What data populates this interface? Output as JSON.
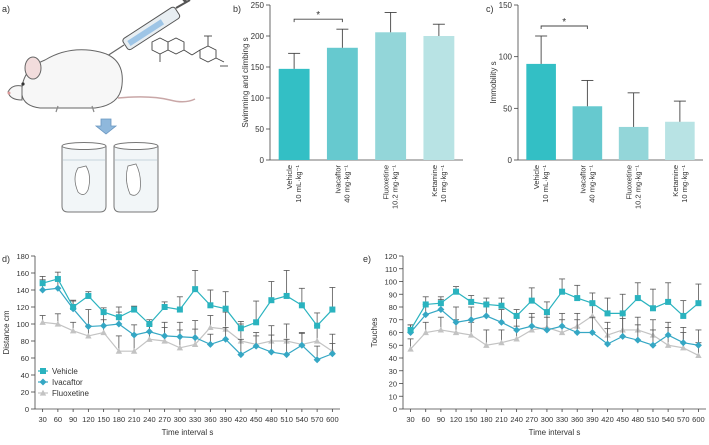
{
  "panels": {
    "a": "a)",
    "b": "b)",
    "c": "c)",
    "d": "d)",
    "e": "e)"
  },
  "colors": {
    "vehicle": "#33bfc5",
    "ivacaftor": "#66c9cf",
    "fluoxetine": "#93d6d9",
    "ketamine": "#b8e3e4",
    "line_vehicle": "#2ab3bf",
    "line_ivacaftor": "#35a7c4",
    "line_fluoxetine": "#c3c3c3"
  },
  "chart_data": [
    {
      "id": "b",
      "type": "bar",
      "ylabel": "Swimming and climbing s",
      "ylim": [
        0,
        250
      ],
      "yticks": [
        0,
        50,
        100,
        150,
        200,
        250
      ],
      "categories": [
        [
          "Vehicle",
          "10 mL·kg⁻¹"
        ],
        [
          "Ivacaftor",
          "40 mg·kg⁻¹"
        ],
        [
          "Fluoxetine",
          "10.2 mg·kg⁻¹"
        ],
        [
          "Ketamine",
          "10 mg·kg⁻¹"
        ]
      ],
      "values": [
        147,
        181,
        206,
        200
      ],
      "errors": [
        25,
        30,
        32,
        19
      ],
      "significance": {
        "from": 0,
        "to": 1,
        "label": "*"
      }
    },
    {
      "id": "c",
      "type": "bar",
      "ylabel": "Immobility s",
      "ylim": [
        0,
        150
      ],
      "yticks": [
        0,
        50,
        100,
        150
      ],
      "categories": [
        [
          "Vehicle",
          "10 mL·kg⁻¹"
        ],
        [
          "Ivacaftor",
          "40 mg·kg⁻¹"
        ],
        [
          "Fluoxetine",
          "10.2 mg·kg⁻¹"
        ],
        [
          "Ketamine",
          "10 mg·kg⁻¹"
        ]
      ],
      "values": [
        93,
        52,
        32,
        37
      ],
      "errors": [
        27,
        25,
        33,
        20
      ],
      "significance": {
        "from": 0,
        "to": 1,
        "label": "*"
      }
    },
    {
      "id": "d",
      "type": "line",
      "xlabel": "Time interval s",
      "ylabel": "Distance cm",
      "ylim": [
        0,
        180
      ],
      "yticks": [
        0,
        20,
        40,
        60,
        80,
        100,
        120,
        140,
        160,
        180
      ],
      "x": [
        30,
        60,
        90,
        120,
        150,
        180,
        210,
        240,
        270,
        300,
        330,
        360,
        390,
        420,
        450,
        480,
        510,
        540,
        570,
        600
      ],
      "legend": "bottom-left",
      "series": [
        {
          "name": "Vehicle",
          "marker": "square",
          "values": [
            148,
            153,
            120,
            133,
            114,
            108,
            117,
            100,
            120,
            117,
            141,
            122,
            118,
            95,
            102,
            128,
            133,
            122,
            98,
            117
          ],
          "errors": [
            8,
            8,
            7,
            5,
            5,
            6,
            4,
            5,
            6,
            15,
            22,
            18,
            20,
            8,
            25,
            22,
            30,
            20,
            15,
            26
          ]
        },
        {
          "name": "Ivacaftor",
          "marker": "diamond",
          "values": [
            140,
            142,
            118,
            97,
            98,
            100,
            87,
            91,
            86,
            85,
            84,
            76,
            82,
            64,
            74,
            67,
            64,
            75,
            58,
            65
          ],
          "errors": [
            12,
            10,
            10,
            20,
            18,
            20,
            12,
            8,
            10,
            8,
            10,
            12,
            14,
            18,
            12,
            20,
            18,
            14,
            16,
            12
          ]
        },
        {
          "name": "Fluoxetine",
          "marker": "triangle",
          "values": [
            102,
            100,
            92,
            86,
            90,
            68,
            68,
            82,
            80,
            72,
            76,
            96,
            94,
            80,
            76,
            80,
            80,
            76,
            80,
            68
          ],
          "errors": [
            8,
            12,
            10,
            12,
            15,
            18,
            20,
            18,
            22,
            30,
            28,
            14,
            20,
            20,
            14,
            18,
            20,
            14,
            18,
            20
          ]
        }
      ]
    },
    {
      "id": "e",
      "type": "line",
      "xlabel": "Time interval s",
      "ylabel": "Touches",
      "ylim": [
        0,
        120
      ],
      "yticks": [
        0,
        10,
        20,
        30,
        40,
        50,
        60,
        70,
        80,
        90,
        100,
        110,
        120
      ],
      "x": [
        30,
        60,
        90,
        120,
        150,
        180,
        210,
        240,
        270,
        300,
        330,
        360,
        390,
        420,
        450,
        480,
        510,
        540,
        570,
        600
      ],
      "series": [
        {
          "name": "Vehicle",
          "marker": "square",
          "values": [
            62,
            82,
            83,
            92,
            84,
            82,
            81,
            73,
            85,
            76,
            92,
            87,
            83,
            75,
            75,
            87,
            79,
            84,
            73,
            83
          ],
          "errors": [
            4,
            6,
            5,
            4,
            5,
            5,
            6,
            5,
            10,
            8,
            10,
            10,
            8,
            12,
            15,
            12,
            15,
            15,
            12,
            15
          ]
        },
        {
          "name": "Ivacaftor",
          "marker": "diamond",
          "values": [
            60,
            74,
            78,
            68,
            70,
            73,
            68,
            62,
            65,
            62,
            65,
            60,
            60,
            51,
            57,
            54,
            50,
            58,
            52,
            50
          ],
          "errors": [
            6,
            8,
            8,
            12,
            10,
            10,
            10,
            10,
            10,
            10,
            10,
            10,
            12,
            12,
            14,
            12,
            12,
            10,
            12,
            12
          ]
        },
        {
          "name": "Fluoxetine",
          "marker": "triangle",
          "values": [
            47,
            60,
            62,
            60,
            58,
            50,
            52,
            55,
            62,
            64,
            60,
            65,
            73,
            58,
            62,
            62,
            58,
            50,
            48,
            42
          ],
          "errors": [
            8,
            8,
            10,
            10,
            10,
            12,
            10,
            10,
            10,
            10,
            10,
            10,
            10,
            10,
            12,
            10,
            12,
            14,
            12,
            10
          ]
        }
      ]
    }
  ]
}
